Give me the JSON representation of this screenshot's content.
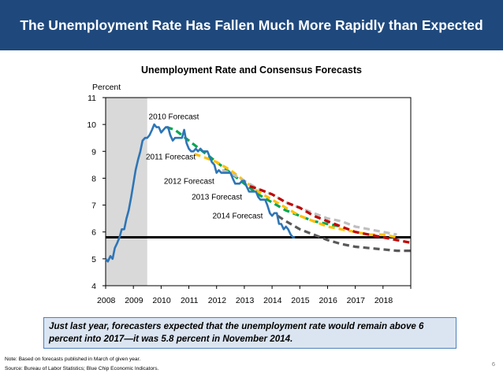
{
  "header": {
    "title": "The Unemployment Rate Has Fallen Much More Rapidly than Expected"
  },
  "chart_data": {
    "type": "line",
    "title": "Unemployment Rate and Consensus Forecasts",
    "ylabel": "Percent",
    "xlabel": "",
    "xlim": [
      2008,
      2019
    ],
    "ylim": [
      4,
      11
    ],
    "y_ticks": [
      "4",
      "5",
      "6",
      "7",
      "8",
      "9",
      "10",
      "11"
    ],
    "x_ticks": [
      "2008",
      "2009",
      "2010",
      "2011",
      "2012",
      "2013",
      "2014",
      "2015",
      "2016",
      "2017",
      "2018"
    ],
    "recession_shade": [
      2008.0,
      2009.5
    ],
    "reference_line": {
      "value": 5.8,
      "color": "#000000"
    },
    "actual": {
      "color": "#2e75b6",
      "x": [
        2008.0,
        2008.08,
        2008.17,
        2008.25,
        2008.33,
        2008.42,
        2008.5,
        2008.58,
        2008.67,
        2008.75,
        2008.83,
        2008.92,
        2009.0,
        2009.08,
        2009.17,
        2009.25,
        2009.33,
        2009.42,
        2009.5,
        2009.58,
        2009.67,
        2009.75,
        2009.83,
        2009.92,
        2010.0,
        2010.08,
        2010.17,
        2010.25,
        2010.33,
        2010.42,
        2010.5,
        2010.58,
        2010.67,
        2010.75,
        2010.83,
        2010.92,
        2011.0,
        2011.08,
        2011.17,
        2011.25,
        2011.33,
        2011.42,
        2011.5,
        2011.58,
        2011.67,
        2011.75,
        2011.83,
        2011.92,
        2012.0,
        2012.08,
        2012.17,
        2012.25,
        2012.33,
        2012.42,
        2012.5,
        2012.58,
        2012.67,
        2012.75,
        2012.83,
        2012.92,
        2013.0,
        2013.08,
        2013.17,
        2013.25,
        2013.33,
        2013.42,
        2013.5,
        2013.58,
        2013.67,
        2013.75,
        2013.83,
        2013.92,
        2014.0,
        2014.08,
        2014.17,
        2014.25,
        2014.33,
        2014.42,
        2014.5,
        2014.58,
        2014.67,
        2014.75,
        2014.83
      ],
      "values": [
        5.0,
        4.9,
        5.1,
        5.0,
        5.4,
        5.6,
        5.8,
        6.1,
        6.1,
        6.5,
        6.8,
        7.3,
        7.8,
        8.3,
        8.7,
        9.0,
        9.4,
        9.5,
        9.5,
        9.6,
        9.8,
        10.0,
        9.9,
        9.9,
        9.7,
        9.8,
        9.9,
        9.9,
        9.6,
        9.4,
        9.5,
        9.5,
        9.5,
        9.5,
        9.8,
        9.3,
        9.1,
        9.0,
        9.0,
        9.1,
        9.0,
        9.1,
        9.0,
        9.0,
        9.0,
        8.8,
        8.6,
        8.5,
        8.2,
        8.3,
        8.2,
        8.2,
        8.2,
        8.2,
        8.2,
        8.0,
        7.8,
        7.8,
        7.8,
        7.9,
        7.9,
        7.7,
        7.5,
        7.5,
        7.5,
        7.5,
        7.3,
        7.2,
        7.2,
        7.2,
        7.0,
        6.7,
        6.6,
        6.7,
        6.7,
        6.3,
        6.3,
        6.1,
        6.2,
        6.1,
        5.9,
        5.8,
        5.8
      ]
    },
    "forecasts": [
      {
        "name": "2010 Forecast",
        "color": "#00a651",
        "x": [
          2010.2,
          2010.5,
          2011,
          2011.5,
          2012,
          2012.5,
          2013,
          2013.5,
          2014,
          2014.5,
          2015,
          2015.5,
          2016,
          2016.5
        ],
        "values": [
          9.9,
          9.8,
          9.4,
          9.0,
          8.6,
          8.2,
          7.8,
          7.4,
          7.1,
          6.8,
          6.6,
          6.4,
          6.3,
          6.2
        ]
      },
      {
        "name": "2011 Forecast",
        "color": "#ffc000",
        "x": [
          2011.2,
          2011.5,
          2012,
          2012.5,
          2013,
          2013.5,
          2014,
          2014.5,
          2015,
          2015.5,
          2016,
          2016.5,
          2017,
          2017.5,
          2018,
          2018.5
        ],
        "values": [
          8.9,
          8.8,
          8.6,
          8.3,
          7.9,
          7.5,
          7.2,
          6.9,
          6.6,
          6.4,
          6.2,
          6.1,
          6.0,
          5.9,
          5.9,
          5.8
        ]
      },
      {
        "name": "2012 Forecast",
        "color": "#bfbfbf",
        "x": [
          2012.2,
          2012.5,
          2013,
          2013.5,
          2014,
          2014.5,
          2015,
          2015.5,
          2016,
          2016.5,
          2017,
          2017.5,
          2018,
          2018.5
        ],
        "values": [
          8.3,
          8.2,
          7.9,
          7.6,
          7.4,
          7.1,
          6.9,
          6.7,
          6.5,
          6.4,
          6.2,
          6.1,
          6.0,
          5.9
        ]
      },
      {
        "name": "2013 Forecast",
        "color": "#c00000",
        "x": [
          2013.2,
          2013.5,
          2014,
          2014.5,
          2015,
          2015.5,
          2016,
          2016.5,
          2017,
          2017.5,
          2018,
          2018.5,
          2019
        ],
        "values": [
          7.7,
          7.6,
          7.4,
          7.1,
          6.9,
          6.6,
          6.4,
          6.2,
          6.0,
          5.9,
          5.8,
          5.7,
          5.6
        ]
      },
      {
        "name": "2014 Forecast",
        "color": "#595959",
        "x": [
          2014.2,
          2014.5,
          2015,
          2015.5,
          2016,
          2016.5,
          2017,
          2017.5,
          2018,
          2018.5,
          2019
        ],
        "values": [
          6.6,
          6.4,
          6.1,
          5.9,
          5.7,
          5.55,
          5.45,
          5.4,
          5.35,
          5.3,
          5.3
        ]
      }
    ]
  },
  "callout": {
    "text": "Just last year, forecasters expected that the unemployment rate would remain above 6 percent into 2017—it was 5.8 percent in November 2014."
  },
  "footer": {
    "note": "Note: Based on forecasts published in March of given year.",
    "source": "Source: Bureau of Labor Statistics; Blue Chip Economic Indicators.",
    "page": "6"
  }
}
